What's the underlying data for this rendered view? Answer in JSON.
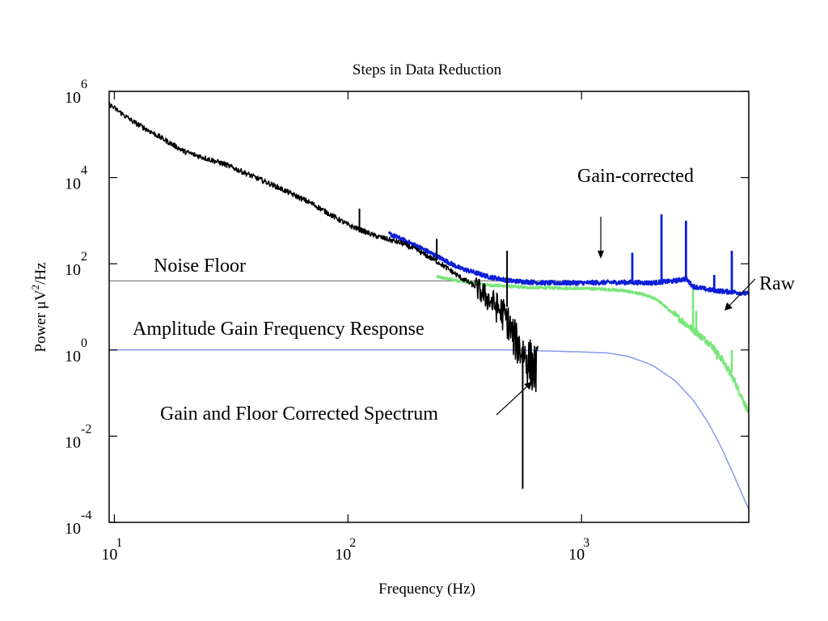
{
  "chart_data": {
    "type": "line",
    "title": "Steps in Data Reduction",
    "xlabel": "Frequency (Hz)",
    "ylabel_parts": [
      "Power μV",
      "2",
      "/Hz"
    ],
    "xscale": "log",
    "yscale": "log",
    "xlim": [
      9.5,
      5200
    ],
    "ylim": [
      0.0001,
      1000000
    ],
    "grid": false,
    "x_ticks": [
      {
        "base": "10",
        "exp": "1",
        "value": 10
      },
      {
        "base": "10",
        "exp": "2",
        "value": 100
      },
      {
        "base": "10",
        "exp": "3",
        "value": 1000
      }
    ],
    "y_ticks": [
      {
        "base": "10",
        "exp": "6",
        "value": 1000000
      },
      {
        "base": "10",
        "exp": "4",
        "value": 10000
      },
      {
        "base": "10",
        "exp": "2",
        "value": 100
      },
      {
        "base": "10",
        "exp": "0",
        "value": 1
      },
      {
        "base": "10",
        "exp": "-2",
        "value": 0.01
      },
      {
        "base": "10",
        "exp": "-4",
        "value": 0.0001
      }
    ],
    "series": [
      {
        "key": "noise_floor",
        "color": "#808080",
        "points": [
          [
            9.5,
            40
          ],
          [
            1000,
            40
          ]
        ]
      },
      {
        "key": "amplitude_gain",
        "color": "#8c96ee",
        "points": [
          [
            9.5,
            1.0
          ],
          [
            500,
            1.0
          ],
          [
            1000,
            0.9
          ],
          [
            1300,
            0.85
          ],
          [
            1600,
            0.7
          ],
          [
            2000,
            0.45
          ],
          [
            2500,
            0.2
          ],
          [
            3000,
            0.07
          ],
          [
            3500,
            0.02
          ],
          [
            4000,
            0.005
          ],
          [
            4500,
            0.0012
          ],
          [
            5200,
            0.0002
          ]
        ]
      },
      {
        "key": "raw",
        "color": "#7be67b",
        "points": [
          [
            240,
            50
          ],
          [
            300,
            40
          ],
          [
            400,
            32
          ],
          [
            600,
            28
          ],
          [
            900,
            27
          ],
          [
            1200,
            26
          ],
          [
            1500,
            24
          ],
          [
            1800,
            20
          ],
          [
            2100,
            15
          ],
          [
            2400,
            8
          ],
          [
            2800,
            4
          ],
          [
            3200,
            2.2
          ],
          [
            3600,
            1.3
          ],
          [
            4000,
            0.6
          ],
          [
            4500,
            0.2
          ],
          [
            5200,
            0.035
          ]
        ],
        "spikes": [
          [
            3000,
            27,
            3
          ],
          [
            3100,
            8,
            2.2
          ],
          [
            3800,
            0.6,
            1.0
          ],
          [
            4400,
            0.3,
            1.0
          ]
        ]
      },
      {
        "key": "gain_corrected",
        "color": "#0d1fd6",
        "points": [
          [
            150,
            500
          ],
          [
            200,
            250
          ],
          [
            240,
            150
          ],
          [
            300,
            80
          ],
          [
            400,
            50
          ],
          [
            500,
            40
          ],
          [
            700,
            36
          ],
          [
            1000,
            36
          ],
          [
            1300,
            37
          ],
          [
            1600,
            37
          ],
          [
            2000,
            36
          ],
          [
            2500,
            40
          ],
          [
            2800,
            45
          ],
          [
            3000,
            30
          ],
          [
            3500,
            25
          ],
          [
            4000,
            23
          ],
          [
            4500,
            22
          ],
          [
            5200,
            20
          ]
        ],
        "spikes": [
          [
            1650,
            36,
            180
          ],
          [
            2200,
            36,
            1400
          ],
          [
            2800,
            45,
            1000
          ],
          [
            3700,
            23,
            55
          ],
          [
            4400,
            22,
            200
          ]
        ]
      },
      {
        "key": "gain_floor_corrected",
        "color": "#000000",
        "points": [
          [
            9.5,
            500000
          ],
          [
            12,
            200000
          ],
          [
            15,
            100000
          ],
          [
            20,
            40000
          ],
          [
            30,
            20000
          ],
          [
            50,
            6000
          ],
          [
            70,
            2500
          ],
          [
            100,
            800
          ],
          [
            130,
            450
          ],
          [
            170,
            300
          ],
          [
            200,
            200
          ],
          [
            250,
            100
          ],
          [
            300,
            50
          ],
          [
            350,
            30
          ],
          [
            400,
            15
          ],
          [
            450,
            8
          ],
          [
            480,
            5
          ],
          [
            510,
            2
          ],
          [
            550,
            1
          ],
          [
            600,
            0.5
          ],
          [
            650,
            0.3
          ]
        ],
        "spikes": [
          [
            112,
            600,
            1900
          ],
          [
            240,
            120,
            380
          ],
          [
            480,
            10,
            200
          ],
          [
            560,
            0.8,
            0.0006
          ]
        ]
      }
    ],
    "annotations": [
      {
        "text": "Gain-corrected"
      },
      {
        "text": "Raw"
      },
      {
        "text": "Noise Floor"
      },
      {
        "text": "Amplitude Gain Frequency Response"
      },
      {
        "text": "Gain and Floor Corrected Spectrum"
      }
    ]
  }
}
